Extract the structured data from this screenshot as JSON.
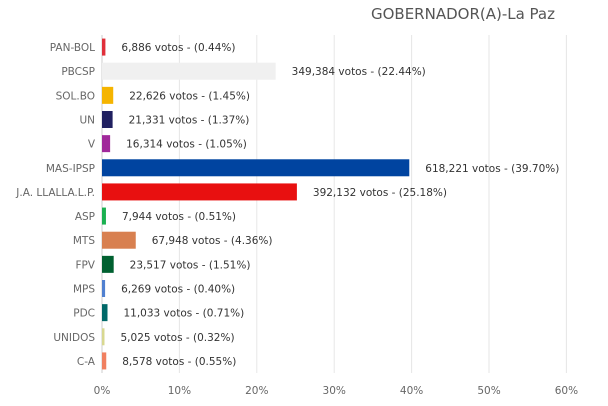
{
  "chart_data": {
    "type": "bar",
    "orientation": "horizontal",
    "title": "GOBERNADOR(A)-La Paz",
    "xlim": [
      0,
      65
    ],
    "x_ticks": [
      0,
      10,
      20,
      30,
      40,
      50,
      60
    ],
    "x_tick_labels": [
      "0%",
      "10%",
      "20%",
      "30%",
      "40%",
      "50%",
      "60%"
    ],
    "grid": true,
    "categories": [
      "PAN-BOL",
      "PBCSP",
      "SOL.BO",
      "UN",
      "V",
      "MAS-IPSP",
      "J.A. LLALLA.L.P.",
      "ASP",
      "MTS",
      "FPV",
      "MPS",
      "PDC",
      "UNIDOS",
      "C-A"
    ],
    "values": [
      0.44,
      22.44,
      1.45,
      1.37,
      1.05,
      39.7,
      25.18,
      0.51,
      4.36,
      1.51,
      0.4,
      0.71,
      0.32,
      0.55
    ],
    "labels": [
      "6,886 votos - (0.44%)",
      "349,384 votos - (22.44%)",
      "22,626 votos - (1.45%)",
      "21,331 votos - (1.37%)",
      "16,314 votos - (1.05%)",
      "618,221 votos - (39.70%)",
      "392,132 votos - (25.18%)",
      "7,944 votos - (0.51%)",
      "67,948 votos - (4.36%)",
      "23,517 votos - (1.51%)",
      "6,269 votos - (0.40%)",
      "11,033 votos - (0.71%)",
      "5,025 votos - (0.32%)",
      "8,578 votos - (0.55%)"
    ],
    "colors": [
      "#e0303a",
      "#f0f0f0",
      "#f5b400",
      "#202060",
      "#a0289a",
      "#0044a0",
      "#e81010",
      "#1ab050",
      "#d88050",
      "#006030",
      "#5080d0",
      "#006868",
      "#d8d890",
      "#f08060"
    ]
  }
}
